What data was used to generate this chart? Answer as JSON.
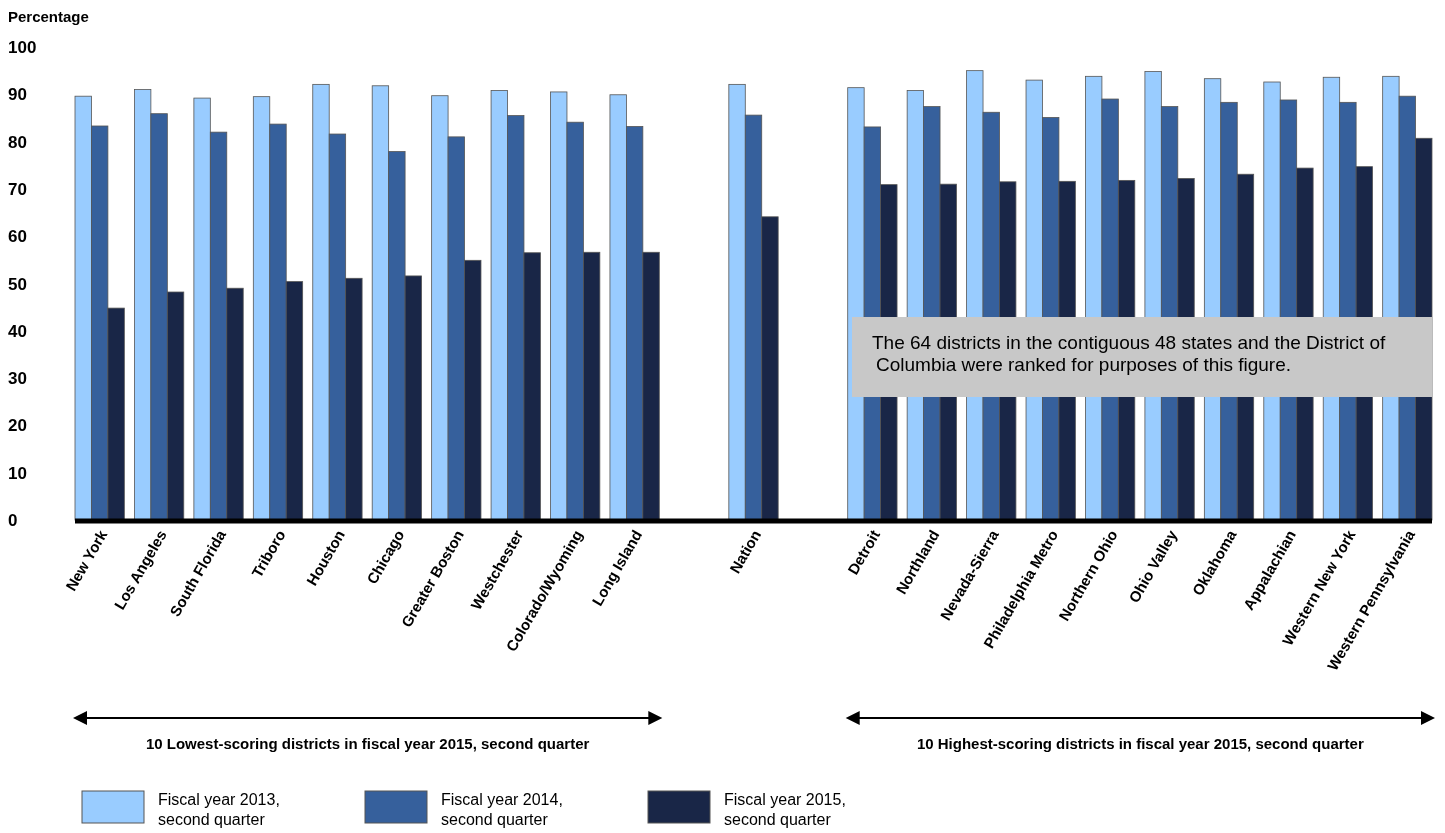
{
  "chart_data": {
    "type": "bar",
    "ylabel": "Percentage",
    "categories": [
      "New York",
      "Los Angeles",
      "South Florida",
      "Triboro",
      "Houston",
      "Chicago",
      "Greater Boston",
      "Westchester",
      "Colorado/Wyoming",
      "Long Island",
      null,
      "Nation",
      null,
      "Detroit",
      "Northland",
      "Nevada-Sierra",
      "Philadelphia Metro",
      "Northern Ohio",
      "Ohio Valley",
      "Oklahoma",
      "Appalachian",
      "Western New York",
      "Western Pennsylvania"
    ],
    "series": [
      {
        "name": "Fiscal year 2013, second quarter",
        "color": "#99ccff",
        "values": [
          89.6,
          91,
          89.2,
          89.5,
          92.1,
          91.8,
          89.7,
          90.8,
          90.5,
          89.9,
          null,
          92.1,
          null,
          91.4,
          90.8,
          95,
          93,
          93.8,
          94.8,
          93.3,
          92.6,
          93.6,
          93.8
        ]
      },
      {
        "name": "Fiscal year 2014, second quarter",
        "color": "#36609c",
        "values": [
          83.3,
          85.9,
          82,
          83.7,
          81.6,
          77.9,
          81,
          85.5,
          84.1,
          83.2,
          null,
          85.6,
          null,
          83.1,
          87.4,
          86.2,
          85.1,
          89,
          87.4,
          88.3,
          88.8,
          88.3,
          89.6
        ]
      },
      {
        "name": "Fiscal year 2015, second quarter",
        "color": "#192647",
        "values": [
          44.8,
          48.2,
          49,
          50.4,
          51.1,
          51.6,
          54.9,
          56.5,
          56.6,
          56.6,
          null,
          64.1,
          null,
          70.9,
          71,
          71.5,
          71.6,
          71.8,
          72.2,
          73.1,
          74.4,
          74.7,
          80.7
        ]
      }
    ],
    "ylim": [
      0,
      100
    ],
    "yticks": [
      0,
      10,
      20,
      30,
      40,
      50,
      60,
      70,
      80,
      90,
      100
    ],
    "legend": "bottom",
    "annotations": [
      "The 64 districts in the contiguous 48 states and the District of Columbia were ranked for purposes of this figure.",
      "10 Lowest-scoring districts in fiscal year 2015, second quarter",
      "10 Highest-scoring districts in fiscal year 2015, second quarter"
    ]
  }
}
